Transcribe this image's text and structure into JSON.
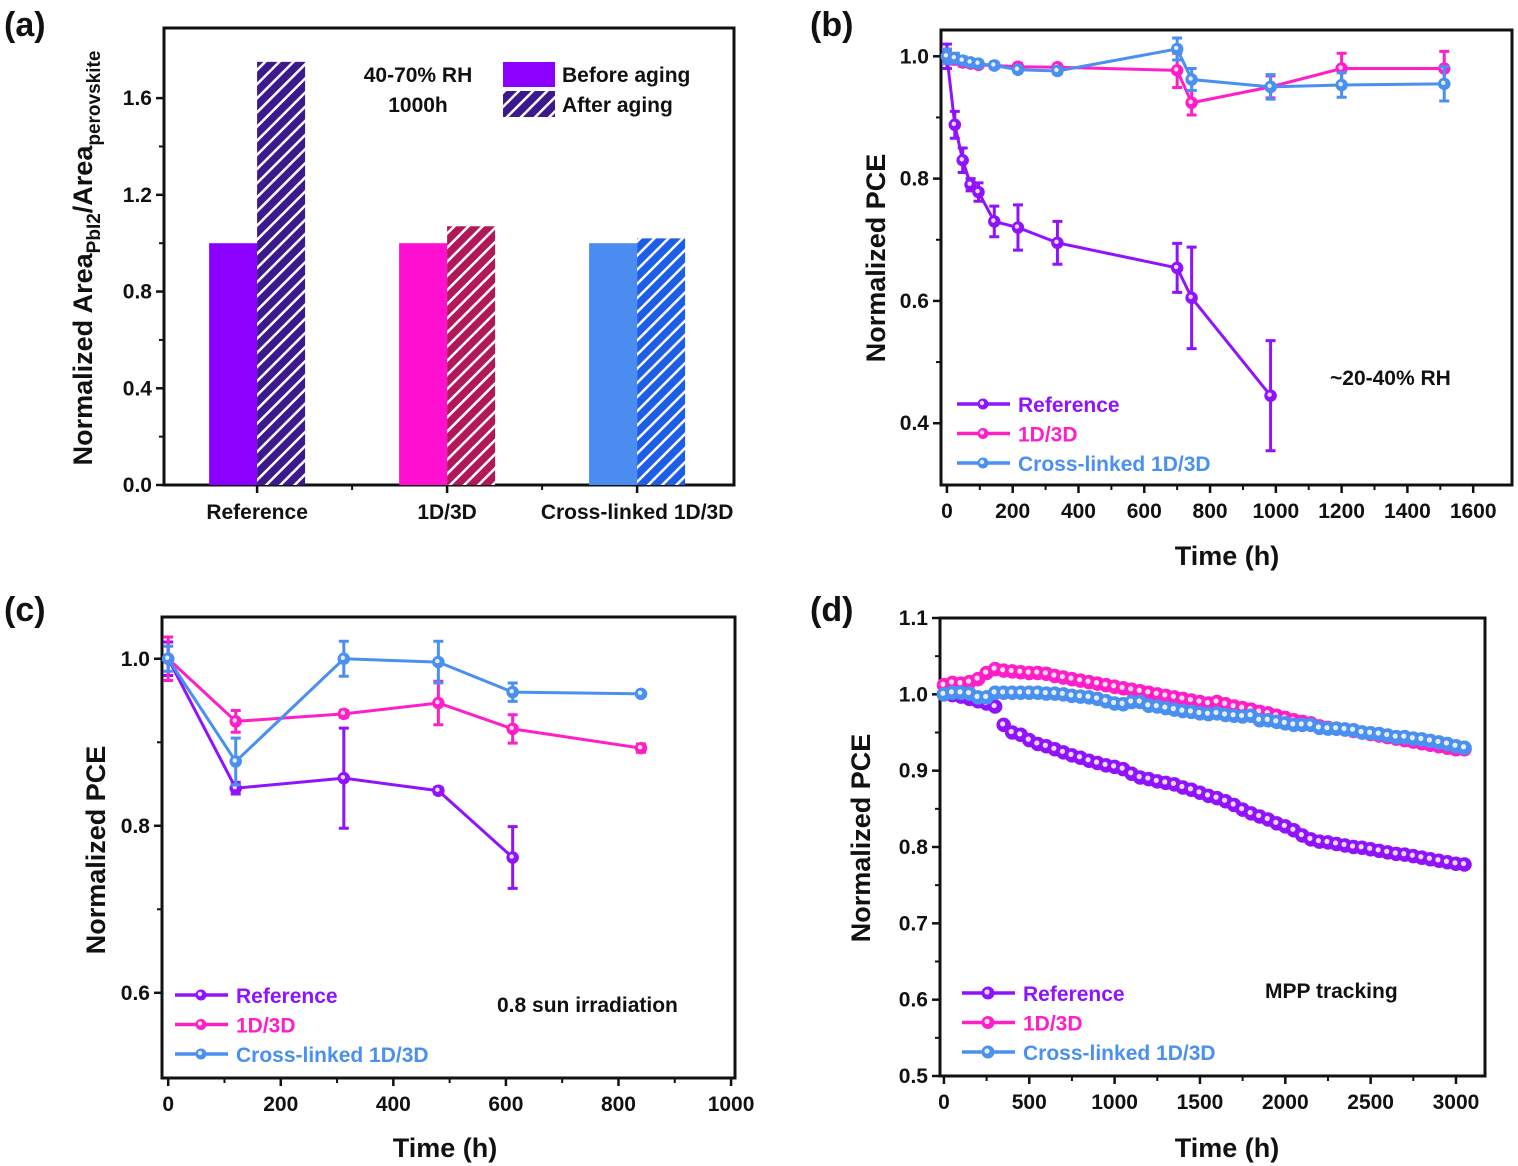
{
  "colors": {
    "reference": "#9013fe",
    "d1d3d": "#ff1fc8",
    "cross": "#4a90f0",
    "ref_before": "#8b00ff",
    "ref_after": "#3c1a8c",
    "d1_before": "#ff10d0",
    "d1_after": "#b0185a",
    "cross_before": "#4a8cf0",
    "cross_after": "#1e5ee6"
  },
  "chart_data": [
    {
      "panel": "(a)",
      "type": "bar",
      "categories": [
        "Reference",
        "1D/3D",
        "Cross-linked 1D/3D"
      ],
      "series": [
        {
          "name": "Before aging",
          "values": [
            1.0,
            1.0,
            1.0
          ]
        },
        {
          "name": "After aging",
          "values": [
            1.75,
            1.07,
            1.02
          ]
        }
      ],
      "ylabel_parts": [
        "Normalized Area",
        "PbI2",
        "/Area",
        "perovskite"
      ],
      "ylabel": "Normalized Area_PbI2/Area_perovskite",
      "xlabel": "",
      "ylim": [
        0,
        1.89
      ],
      "xlim": [
        0.51,
        3.51
      ],
      "yticks": [
        0.0,
        0.4,
        0.8,
        1.2,
        1.6
      ],
      "ytick_labels": [
        "0.0",
        "0.4",
        "0.8",
        "1.2",
        "1.6"
      ],
      "annotations": [
        "40-70% RH",
        "1000h"
      ],
      "legend_placement": "top-right",
      "grid": false
    },
    {
      "panel": "(b)",
      "type": "line",
      "xlabel": "Time (h)",
      "ylabel": "Normalized PCE",
      "xlim": [
        -18,
        1718
      ],
      "ylim": [
        0.299,
        1.043
      ],
      "xticks": [
        0,
        200,
        400,
        600,
        800,
        1000,
        1200,
        1400,
        1600
      ],
      "xtick_labels": [
        "0",
        "200",
        "400",
        "600",
        "800",
        "1000",
        "1200",
        "1400",
        "1600"
      ],
      "yticks": [
        0.4,
        0.6,
        0.8,
        1.0
      ],
      "ytick_labels": [
        "0.4",
        "0.6",
        "0.8",
        "1.0"
      ],
      "annotations": [
        "~20-40% RH"
      ],
      "legend_placement": "bottom-left",
      "grid": false,
      "series": [
        {
          "name": "Reference",
          "x": [
            0,
            24,
            48,
            72,
            96,
            144,
            216,
            336,
            700,
            744,
            984
          ],
          "y": [
            1.0,
            0.888,
            0.83,
            0.79,
            0.778,
            0.73,
            0.72,
            0.695,
            0.654,
            0.605,
            0.445
          ],
          "err": [
            0.02,
            0.022,
            0.02,
            0.01,
            0.015,
            0.025,
            0.037,
            0.035,
            0.04,
            0.083,
            0.09
          ]
        },
        {
          "name": "1D/3D",
          "x": [
            0,
            24,
            48,
            72,
            96,
            144,
            216,
            336,
            700,
            744,
            984,
            1200,
            1512
          ],
          "y": [
            1.0,
            0.995,
            0.99,
            0.988,
            0.986,
            0.985,
            0.983,
            0.982,
            0.977,
            0.924,
            0.95,
            0.98,
            0.98
          ],
          "err": [
            0.01,
            0.008,
            0.006,
            0.005,
            0.005,
            0.005,
            0.005,
            0.005,
            0.028,
            0.02,
            0.018,
            0.025,
            0.028
          ]
        },
        {
          "name": "Cross-linked 1D/3D",
          "x": [
            0,
            24,
            48,
            72,
            96,
            144,
            216,
            336,
            700,
            744,
            984,
            1200,
            1512
          ],
          "y": [
            1.0,
            0.997,
            0.993,
            0.99,
            0.988,
            0.985,
            0.978,
            0.976,
            1.012,
            0.962,
            0.95,
            0.953,
            0.955
          ],
          "err": [
            0.012,
            0.008,
            0.006,
            0.005,
            0.005,
            0.005,
            0.005,
            0.005,
            0.018,
            0.018,
            0.02,
            0.02,
            0.028
          ]
        }
      ]
    },
    {
      "panel": "(c)",
      "type": "line",
      "xlabel": "Time (h)",
      "ylabel": "Normalized PCE",
      "xlim": [
        -11,
        1007
      ],
      "ylim": [
        0.498,
        1.05
      ],
      "xticks": [
        0,
        200,
        400,
        600,
        800,
        1000
      ],
      "xtick_labels": [
        "0",
        "200",
        "400",
        "600",
        "800",
        "1000"
      ],
      "yticks": [
        0.6,
        0.8,
        1.0
      ],
      "ytick_labels": [
        "0.6",
        "0.8",
        "1.0"
      ],
      "annotations": [
        "0.8 sun irradiation"
      ],
      "legend_placement": "bottom-left",
      "grid": false,
      "series": [
        {
          "name": "Reference",
          "x": [
            0,
            120,
            312,
            480,
            612
          ],
          "y": [
            1.0,
            0.845,
            0.857,
            0.842,
            0.762
          ],
          "err": [
            0.02,
            0.007,
            0.06,
            0.004,
            0.037
          ]
        },
        {
          "name": "1D/3D",
          "x": [
            0,
            120,
            312,
            480,
            612,
            840
          ],
          "y": [
            1.0,
            0.925,
            0.934,
            0.947,
            0.916,
            0.893
          ],
          "err": [
            0.026,
            0.013,
            0.004,
            0.026,
            0.017,
            0.005
          ]
        },
        {
          "name": "Cross-linked 1D/3D",
          "x": [
            0,
            120,
            312,
            480,
            612,
            840
          ],
          "y": [
            1.0,
            0.877,
            1.0,
            0.996,
            0.96,
            0.958
          ],
          "err": [
            0.015,
            0.028,
            0.021,
            0.025,
            0.011,
            0.003
          ]
        }
      ]
    },
    {
      "panel": "(d)",
      "type": "scatter",
      "xlabel": "Time (h)",
      "ylabel": "Normalized PCE",
      "xlim": [
        -23,
        3170
      ],
      "ylim": [
        0.5,
        1.1
      ],
      "xticks": [
        0,
        500,
        1000,
        1500,
        2000,
        2500,
        3000
      ],
      "xtick_labels": [
        "0",
        "500",
        "1000",
        "1500",
        "2000",
        "2500",
        "3000"
      ],
      "yticks": [
        0.5,
        0.6,
        0.7,
        0.8,
        0.9,
        1.0,
        1.1
      ],
      "ytick_labels": [
        "0.5",
        "0.6",
        "0.7",
        "0.8",
        "0.9",
        "1.0",
        "1.1"
      ],
      "annotations": [
        "MPP tracking"
      ],
      "legend_placement": "bottom-left",
      "grid": false,
      "x_start": 0,
      "x_step": 50,
      "series": [
        {
          "name": "Reference",
          "y": [
            1.0,
            0.999,
            0.997,
            0.994,
            0.991,
            0.988,
            0.984,
            0.96,
            0.95,
            0.947,
            0.94,
            0.935,
            0.932,
            0.928,
            0.924,
            0.92,
            0.917,
            0.913,
            0.91,
            0.907,
            0.905,
            0.902,
            0.896,
            0.891,
            0.889,
            0.886,
            0.884,
            0.882,
            0.878,
            0.875,
            0.871,
            0.867,
            0.864,
            0.86,
            0.855,
            0.849,
            0.844,
            0.84,
            0.836,
            0.831,
            0.827,
            0.822,
            0.815,
            0.81,
            0.807,
            0.806,
            0.804,
            0.802,
            0.8,
            0.799,
            0.797,
            0.795,
            0.793,
            0.791,
            0.79,
            0.788,
            0.786,
            0.784,
            0.782,
            0.78,
            0.778,
            0.777
          ]
        },
        {
          "name": "1D/3D",
          "y": [
            1.012,
            1.015,
            1.014,
            1.016,
            1.02,
            1.028,
            1.033,
            1.031,
            1.03,
            1.029,
            1.028,
            1.028,
            1.027,
            1.024,
            1.022,
            1.02,
            1.018,
            1.016,
            1.014,
            1.012,
            1.01,
            1.008,
            1.006,
            1.004,
            1.002,
            1.0,
            0.998,
            0.996,
            0.994,
            0.992,
            0.99,
            0.988,
            0.99,
            0.987,
            0.984,
            0.982,
            0.98,
            0.977,
            0.975,
            0.972,
            0.969,
            0.966,
            0.964,
            0.962,
            0.958,
            0.956,
            0.955,
            0.954,
            0.952,
            0.95,
            0.948,
            0.946,
            0.944,
            0.942,
            0.94,
            0.938,
            0.936,
            0.934,
            0.932,
            0.93,
            0.928,
            0.928
          ]
        },
        {
          "name": "Cross-linked 1D/3D",
          "y": [
            1.0,
            1.002,
            1.002,
            1.001,
            0.996,
            0.996,
            1.002,
            1.002,
            1.002,
            1.002,
            1.002,
            1.002,
            1.001,
            1.001,
            1.0,
            0.998,
            0.997,
            0.996,
            0.994,
            0.991,
            0.988,
            0.987,
            0.99,
            0.99,
            0.985,
            0.984,
            0.982,
            0.98,
            0.978,
            0.977,
            0.975,
            0.974,
            0.975,
            0.973,
            0.972,
            0.971,
            0.972,
            0.966,
            0.966,
            0.964,
            0.962,
            0.96,
            0.96,
            0.96,
            0.956,
            0.955,
            0.955,
            0.954,
            0.953,
            0.95,
            0.949,
            0.948,
            0.946,
            0.944,
            0.944,
            0.942,
            0.941,
            0.939,
            0.937,
            0.935,
            0.932,
            0.93
          ]
        }
      ]
    }
  ]
}
